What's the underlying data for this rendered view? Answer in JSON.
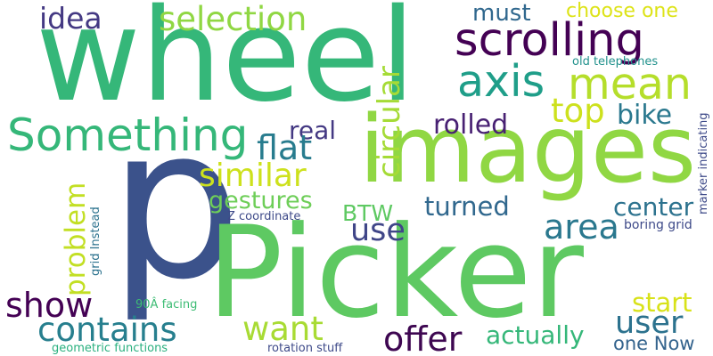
{
  "colors": {
    "background": "#ffffff"
  },
  "words": [
    {
      "text": "p",
      "color": "#3b528b"
    },
    {
      "text": "Picker",
      "color": "#5ec962"
    },
    {
      "text": "wheel",
      "color": "#35b779"
    },
    {
      "text": "images",
      "color": "#90d743"
    },
    {
      "text": "scrolling",
      "color": "#440154"
    },
    {
      "text": "axis",
      "color": "#1f9e89"
    },
    {
      "text": "mean",
      "color": "#b5de2b"
    },
    {
      "text": "Something",
      "color": "#35b779"
    },
    {
      "text": "selection",
      "color": "#90d743"
    },
    {
      "text": "idea",
      "color": "#443983"
    },
    {
      "text": "must",
      "color": "#31688e"
    },
    {
      "text": "choose one",
      "color": "#dde318"
    },
    {
      "text": "old telephones",
      "color": "#21918c"
    },
    {
      "text": "top",
      "color": "#cde11d"
    },
    {
      "text": "bike",
      "color": "#2a788e"
    },
    {
      "text": "circular",
      "color": "#a5db36"
    },
    {
      "text": "rolled",
      "color": "#482173"
    },
    {
      "text": "real",
      "color": "#443983"
    },
    {
      "text": "flat",
      "color": "#287c8e"
    },
    {
      "text": "similar",
      "color": "#cde11d"
    },
    {
      "text": "gestures",
      "color": "#6ece58"
    },
    {
      "text": "problem",
      "color": "#c2df23"
    },
    {
      "text": "BTW",
      "color": "#5ec962"
    },
    {
      "text": "turned",
      "color": "#31688e"
    },
    {
      "text": "area",
      "color": "#2a788e"
    },
    {
      "text": "center",
      "color": "#2c728e"
    },
    {
      "text": "use",
      "color": "#404688"
    },
    {
      "text": "Z coordinate",
      "color": "#3e4a89"
    },
    {
      "text": "grid Instead",
      "color": "#2c728e"
    },
    {
      "text": "boring grid",
      "color": "#3e4a89"
    },
    {
      "text": "marker indicating",
      "color": "#3e4a89"
    },
    {
      "text": "show",
      "color": "#440154"
    },
    {
      "text": "contains",
      "color": "#277f8e"
    },
    {
      "text": "want",
      "color": "#a8db34"
    },
    {
      "text": "90Â facing",
      "color": "#3dbc74"
    },
    {
      "text": "start",
      "color": "#d8e219"
    },
    {
      "text": "user",
      "color": "#2c728e"
    },
    {
      "text": "offer",
      "color": "#3e0751"
    },
    {
      "text": "actually",
      "color": "#35b779"
    },
    {
      "text": "one Now",
      "color": "#33638d"
    },
    {
      "text": "geometric functions",
      "color": "#2ab07f"
    },
    {
      "text": "rotation stuff",
      "color": "#3e4a89"
    }
  ]
}
